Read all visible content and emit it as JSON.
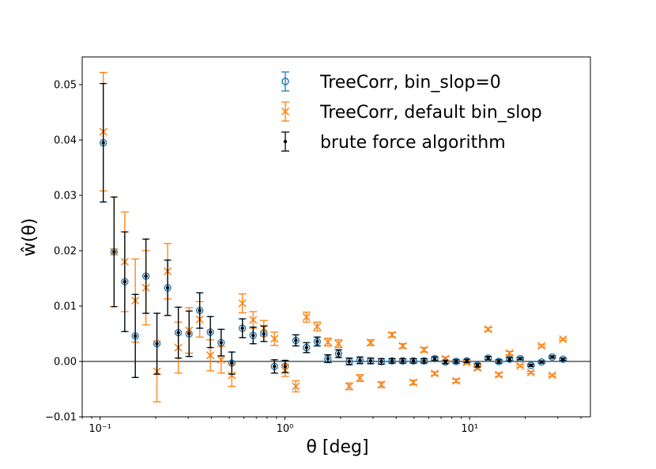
{
  "chart_data": {
    "type": "scatter",
    "title": "",
    "xlabel": "θ [deg]",
    "ylabel": "ŵ(θ)",
    "xscale": "log",
    "xlim": [
      0.08,
      45
    ],
    "ylim": [
      -0.01,
      0.055
    ],
    "grid": false,
    "legend_position": "top-right",
    "reference_line_y": 0,
    "y_ticks": [
      -0.01,
      0.0,
      0.01,
      0.02,
      0.03,
      0.04,
      0.05
    ],
    "y_tick_labels": [
      "−0.01",
      "0.00",
      "0.01",
      "0.02",
      "0.03",
      "0.04",
      "0.05"
    ],
    "x_ticks": [
      0.1,
      1,
      10
    ],
    "x_tick_labels": [
      "10⁻¹",
      "10⁰",
      "10¹"
    ],
    "x": [
      0.104,
      0.119,
      0.136,
      0.155,
      0.177,
      0.203,
      0.232,
      0.265,
      0.303,
      0.346,
      0.395,
      0.452,
      0.516,
      0.589,
      0.673,
      0.769,
      0.878,
      1.003,
      1.146,
      1.309,
      1.496,
      1.709,
      1.952,
      2.23,
      2.548,
      2.91,
      3.326,
      3.8,
      4.341,
      4.958,
      5.664,
      6.47,
      7.392,
      8.445,
      9.647,
      11.02,
      12.59,
      14.38,
      16.43,
      18.77,
      21.44,
      24.49,
      27.98,
      31.96
    ],
    "series": [
      {
        "name": "TreeCorr, bin_slop=0",
        "color": "#1f77b4",
        "marker": "circle",
        "y": [
          0.0395,
          0.0198,
          0.0144,
          0.0046,
          0.0154,
          0.0032,
          0.0133,
          0.0052,
          0.005,
          0.0092,
          0.0053,
          0.0034,
          -0.0003,
          0.006,
          0.0047,
          0.005,
          -0.0009,
          -0.0009,
          0.0038,
          0.0025,
          0.0036,
          0.0005,
          0.0014,
          0.0,
          0.0002,
          0.0001,
          0.0,
          0.0001,
          0.0001,
          0.0001,
          0.0001,
          0.0005,
          -0.0001,
          0.0,
          0.0001,
          -0.0007,
          0.0006,
          0.0,
          0.0004,
          0.0005,
          -0.0007,
          -0.0001,
          0.0008,
          0.0004
        ],
        "err": [
          0.0107,
          0.0099,
          0.009,
          0.0075,
          0.0067,
          0.0055,
          0.005,
          0.0046,
          0.0041,
          0.0032,
          0.0028,
          0.0024,
          0.002,
          0.0017,
          0.0015,
          0.0014,
          0.0012,
          0.0011,
          0.001,
          0.0009,
          0.0008,
          0.0007,
          0.0007,
          0.0006,
          0.0006,
          0.0005,
          0.0005,
          0.0004,
          0.0004,
          0.0004,
          0.0004,
          0.0003,
          0.0003,
          0.0003,
          0.0003,
          0.0003,
          0.0003,
          0.0003,
          0.0003,
          0.0002,
          0.0002,
          0.0002,
          0.0002,
          0.0002
        ]
      },
      {
        "name": "TreeCorr, default bin_slop",
        "color": "#ff7f0e",
        "marker": "x",
        "y": [
          0.0415,
          0.0198,
          0.018,
          0.011,
          0.0133,
          -0.0018,
          0.0163,
          0.0025,
          0.0056,
          0.0076,
          0.0011,
          0.0003,
          -0.0025,
          0.0105,
          0.0075,
          0.006,
          0.0041,
          -0.0016,
          -0.0045,
          0.008,
          0.0063,
          0.0035,
          0.0032,
          -0.0045,
          -0.003,
          0.0034,
          -0.0042,
          0.0048,
          0.0028,
          -0.0038,
          0.0021,
          -0.0022,
          0.0005,
          -0.0035,
          -0.0002,
          -0.0012,
          0.0058,
          -0.0024,
          0.0015,
          -0.0008,
          -0.002,
          0.0028,
          -0.0025,
          0.004
        ],
        "err": [
          0.0107,
          0.0099,
          0.009,
          0.0075,
          0.0067,
          0.0055,
          0.005,
          0.0046,
          0.0041,
          0.0032,
          0.0028,
          0.0024,
          0.002,
          0.0017,
          0.0015,
          0.0014,
          0.0012,
          0.0011,
          0.001,
          0.0009,
          0.0008,
          0.0007,
          0.0007,
          0.0006,
          0.0006,
          0.0005,
          0.0005,
          0.0004,
          0.0004,
          0.0004,
          0.0004,
          0.0003,
          0.0003,
          0.0003,
          0.0003,
          0.0003,
          0.0003,
          0.0003,
          0.0003,
          0.0002,
          0.0002,
          0.0002,
          0.0002,
          0.0002
        ]
      },
      {
        "name": "brute force algorithm",
        "color": "#000000",
        "marker": "dot",
        "y": [
          0.0395,
          0.0198,
          0.0144,
          0.0046,
          0.0154,
          0.0032,
          0.0133,
          0.0052,
          0.005,
          0.0092,
          0.0053,
          0.0034,
          -0.0003,
          0.006,
          0.0047,
          0.005,
          -0.0009,
          -0.0009,
          0.0038,
          0.0025,
          0.0036,
          0.0005,
          0.0014,
          0.0,
          0.0002,
          0.0001,
          0.0,
          0.0001,
          0.0001,
          0.0001,
          0.0001,
          0.0005,
          -0.0001,
          0.0,
          0.0001,
          -0.0007,
          0.0006,
          0.0,
          0.0004,
          0.0005,
          -0.0007,
          -0.0001,
          0.0008,
          0.0004
        ],
        "err": [
          0.0107,
          0.0099,
          0.009,
          0.0075,
          0.0067,
          0.0055,
          0.005,
          0.0046,
          0.0041,
          0.0032,
          0.0028,
          0.0024,
          0.002,
          0.0017,
          0.0015,
          0.0014,
          0.0012,
          0.0011,
          0.001,
          0.0009,
          0.0008,
          0.0007,
          0.0007,
          0.0006,
          0.0006,
          0.0005,
          0.0005,
          0.0004,
          0.0004,
          0.0004,
          0.0004,
          0.0003,
          0.0003,
          0.0003,
          0.0003,
          0.0003,
          0.0003,
          0.0003,
          0.0003,
          0.0002,
          0.0002,
          0.0002,
          0.0002,
          0.0002
        ]
      }
    ]
  }
}
